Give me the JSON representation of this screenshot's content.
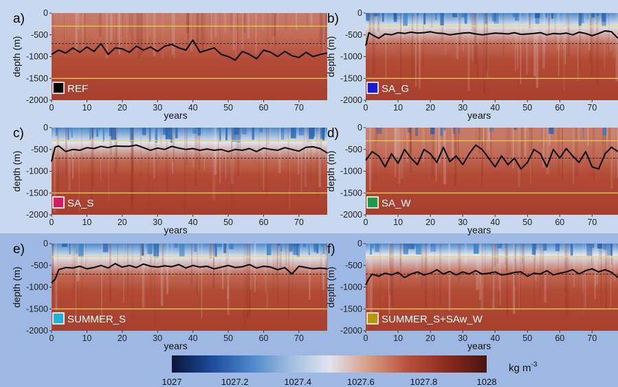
{
  "colors": {
    "ocean_red": "#a9402e",
    "colormap": [
      "#0b1538",
      "#1c4a98",
      "#4a86c9",
      "#9fbde0",
      "#e2e4ee",
      "#d79d84",
      "#b8503a",
      "#8a2a1f",
      "#4a1410"
    ],
    "contour_line": "#000000",
    "yellow_line": "#e8d84a"
  },
  "colorbar": {
    "min": 1027,
    "max": 1028,
    "ticks": [
      "1027",
      "1027.2",
      "1027.4",
      "1027.6",
      "1027.8",
      "1028"
    ],
    "units_base": "kg m",
    "units_exp": "-3"
  },
  "chart_data": [
    {
      "type": "heatmap",
      "panel": "a)",
      "tag": "REF",
      "tag_color": "#000000",
      "freshness": 0.0,
      "xlabel": "years",
      "ylabel": "depth (m)",
      "xlim": [
        0,
        78
      ],
      "ylim": [
        -2000,
        0
      ],
      "x_ticks": [
        0,
        10,
        20,
        30,
        40,
        50,
        60,
        70
      ],
      "y_ticks": [
        0,
        -500,
        -1000,
        -1500,
        -2000
      ],
      "horizontal_lines": {
        "yellow": [
          -300,
          -1500
        ],
        "dashed": [
          -700
        ]
      },
      "series": [
        {
          "x": [
            0,
            2,
            4,
            6,
            8,
            10,
            12,
            14,
            16,
            18,
            20,
            22,
            24,
            26,
            28,
            30,
            32,
            34,
            36,
            38,
            40,
            42,
            44,
            46,
            48,
            50,
            52,
            54,
            56,
            58,
            60,
            62,
            64,
            66,
            68,
            70,
            72,
            74,
            76,
            78
          ],
          "y": [
            -950,
            -850,
            -920,
            -800,
            -900,
            -780,
            -880,
            -700,
            -950,
            -800,
            -820,
            -900,
            -760,
            -850,
            -780,
            -880,
            -760,
            -720,
            -800,
            -850,
            -620,
            -900,
            -850,
            -800,
            -950,
            -1000,
            -1080,
            -880,
            -950,
            -1050,
            -850,
            -900,
            -1000,
            -880,
            -980,
            -1020,
            -900,
            -1000,
            -950,
            -920
          ]
        }
      ]
    },
    {
      "type": "heatmap",
      "panel": "b)",
      "tag": "SA_G",
      "tag_color": "#1a1ad6",
      "freshness": 0.75,
      "xlabel": "years",
      "ylabel": "depth (m)",
      "xlim": [
        0,
        78
      ],
      "ylim": [
        -2000,
        0
      ],
      "x_ticks": [
        0,
        10,
        20,
        30,
        40,
        50,
        60,
        70
      ],
      "y_ticks": [
        0,
        -500,
        -1000,
        -1500,
        -2000
      ],
      "horizontal_lines": {
        "yellow": [
          -300,
          -1500
        ],
        "dashed": [
          -700
        ]
      },
      "series": [
        {
          "x": [
            0,
            1,
            2,
            4,
            6,
            8,
            10,
            12,
            14,
            16,
            18,
            20,
            22,
            24,
            26,
            28,
            30,
            32,
            34,
            36,
            38,
            40,
            42,
            44,
            46,
            48,
            50,
            52,
            54,
            56,
            58,
            60,
            62,
            64,
            66,
            68,
            70,
            72,
            74,
            76,
            78
          ],
          "y": [
            -750,
            -450,
            -500,
            -580,
            -480,
            -500,
            -450,
            -470,
            -440,
            -460,
            -450,
            -430,
            -460,
            -470,
            -500,
            -480,
            -460,
            -450,
            -480,
            -500,
            -480,
            -460,
            -470,
            -480,
            -450,
            -490,
            -480,
            -470,
            -450,
            -500,
            -470,
            -480,
            -460,
            -500,
            -440,
            -470,
            -520,
            -470,
            -410,
            -430,
            -580
          ]
        }
      ]
    },
    {
      "type": "heatmap",
      "panel": "c)",
      "tag": "SA_S",
      "tag_color": "#cc1d66",
      "freshness": 0.9,
      "xlabel": "years",
      "ylabel": "depth (m)",
      "xlim": [
        0,
        78
      ],
      "ylim": [
        -2000,
        0
      ],
      "x_ticks": [
        0,
        10,
        20,
        30,
        40,
        50,
        60,
        70
      ],
      "y_ticks": [
        0,
        -500,
        -1000,
        -1500,
        -2000
      ],
      "horizontal_lines": {
        "yellow": [
          -300,
          -1500
        ],
        "dashed": [
          -700
        ]
      },
      "series": [
        {
          "x": [
            0,
            1,
            2,
            4,
            6,
            8,
            10,
            12,
            14,
            16,
            18,
            20,
            22,
            24,
            26,
            28,
            30,
            32,
            34,
            36,
            38,
            40,
            42,
            44,
            46,
            48,
            50,
            52,
            54,
            56,
            58,
            60,
            62,
            64,
            66,
            68,
            70,
            72,
            74,
            76,
            78
          ],
          "y": [
            -780,
            -450,
            -420,
            -550,
            -500,
            -520,
            -460,
            -480,
            -430,
            -460,
            -420,
            -430,
            -430,
            -400,
            -460,
            -520,
            -470,
            -500,
            -430,
            -470,
            -500,
            -480,
            -520,
            -490,
            -520,
            -500,
            -550,
            -500,
            -520,
            -480,
            -550,
            -470,
            -500,
            -520,
            -460,
            -500,
            -540,
            -450,
            -440,
            -480,
            -580
          ]
        }
      ]
    },
    {
      "type": "heatmap",
      "panel": "d)",
      "tag": "SA_W",
      "tag_color": "#1a9a4a",
      "freshness": 0.35,
      "xlabel": "years",
      "ylabel": "depth (m)",
      "xlim": [
        0,
        78
      ],
      "ylim": [
        -2000,
        0
      ],
      "x_ticks": [
        0,
        10,
        20,
        30,
        40,
        50,
        60,
        70
      ],
      "y_ticks": [
        0,
        -500,
        -1000,
        -1500,
        -2000
      ],
      "horizontal_lines": {
        "yellow": [
          -300,
          -1500
        ],
        "dashed": [
          -700
        ]
      },
      "series": [
        {
          "x": [
            0,
            2,
            4,
            6,
            8,
            10,
            12,
            14,
            16,
            18,
            20,
            22,
            24,
            26,
            28,
            30,
            32,
            34,
            36,
            38,
            40,
            42,
            44,
            46,
            48,
            50,
            52,
            54,
            56,
            58,
            60,
            62,
            64,
            66,
            68,
            70,
            72,
            74,
            76,
            78
          ],
          "y": [
            -750,
            -550,
            -650,
            -900,
            -600,
            -820,
            -500,
            -700,
            -850,
            -500,
            -600,
            -800,
            -450,
            -780,
            -650,
            -850,
            -600,
            -400,
            -500,
            -700,
            -900,
            -650,
            -850,
            -700,
            -950,
            -800,
            -500,
            -600,
            -900,
            -500,
            -700,
            -480,
            -650,
            -800,
            -550,
            -900,
            -950,
            -600,
            -450,
            -550
          ]
        }
      ]
    },
    {
      "type": "heatmap",
      "panel": "e)",
      "tag": "SUMMER_S",
      "tag_color": "#22b2d8",
      "freshness": 0.8,
      "xlabel": "years",
      "ylabel": "depth (m)",
      "xlim": [
        0,
        78
      ],
      "ylim": [
        -2000,
        0
      ],
      "x_ticks": [
        0,
        10,
        20,
        30,
        40,
        50,
        60,
        70
      ],
      "y_ticks": [
        0,
        -500,
        -1000,
        -1500,
        -2000
      ],
      "horizontal_lines": {
        "yellow": [
          -300,
          -1500
        ],
        "dashed": [
          -700
        ]
      },
      "series": [
        {
          "x": [
            0,
            1,
            2,
            4,
            6,
            8,
            10,
            12,
            14,
            16,
            18,
            20,
            22,
            24,
            26,
            28,
            30,
            32,
            34,
            36,
            38,
            40,
            42,
            44,
            46,
            48,
            50,
            52,
            54,
            56,
            58,
            60,
            62,
            64,
            66,
            68,
            70,
            72,
            74,
            76,
            78
          ],
          "y": [
            -900,
            -820,
            -600,
            -550,
            -560,
            -520,
            -580,
            -550,
            -500,
            -560,
            -460,
            -540,
            -500,
            -550,
            -470,
            -520,
            -540,
            -510,
            -530,
            -480,
            -560,
            -500,
            -540,
            -520,
            -580,
            -540,
            -500,
            -550,
            -530,
            -480,
            -560,
            -520,
            -540,
            -600,
            -550,
            -700,
            -520,
            -550,
            -580,
            -560,
            -580
          ]
        }
      ]
    },
    {
      "type": "heatmap",
      "panel": "f)",
      "tag": "SUMMER_S+SAw_W",
      "tag_color": "#b8960a",
      "freshness": 0.6,
      "xlabel": "years",
      "ylabel": "depth (m)",
      "xlim": [
        0,
        78
      ],
      "ylim": [
        -2000,
        0
      ],
      "x_ticks": [
        0,
        10,
        20,
        30,
        40,
        50,
        60,
        70
      ],
      "y_ticks": [
        0,
        -500,
        -1000,
        -1500,
        -2000
      ],
      "horizontal_lines": {
        "yellow": [
          -300,
          -1500
        ],
        "dashed": [
          -700
        ]
      },
      "series": [
        {
          "x": [
            0,
            1,
            2,
            4,
            6,
            8,
            10,
            12,
            14,
            16,
            18,
            20,
            22,
            24,
            26,
            28,
            30,
            32,
            34,
            36,
            38,
            40,
            42,
            44,
            46,
            48,
            50,
            52,
            54,
            56,
            58,
            60,
            62,
            64,
            66,
            68,
            70,
            72,
            74,
            76,
            78
          ],
          "y": [
            -950,
            -800,
            -700,
            -750,
            -680,
            -720,
            -660,
            -780,
            -700,
            -650,
            -720,
            -680,
            -600,
            -700,
            -640,
            -720,
            -650,
            -700,
            -620,
            -700,
            -680,
            -650,
            -720,
            -700,
            -660,
            -650,
            -750,
            -680,
            -700,
            -620,
            -720,
            -680,
            -650,
            -600,
            -700,
            -620,
            -580,
            -650,
            -600,
            -660,
            -780
          ]
        }
      ]
    }
  ]
}
